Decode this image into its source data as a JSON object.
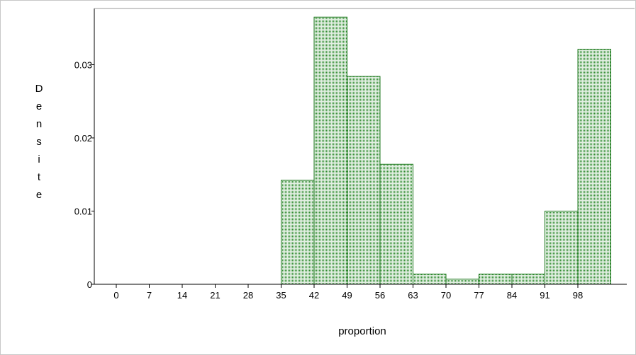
{
  "chart_data": {
    "type": "bar",
    "subtype": "histogram",
    "xlabel": "proportion",
    "ylabel": "Densite",
    "ylim": [
      0,
      0.037
    ],
    "xlim": [
      -7,
      105
    ],
    "bin_width": 7,
    "x_ticks": [
      "0",
      "7",
      "14",
      "21",
      "28",
      "35",
      "42",
      "49",
      "56",
      "63",
      "70",
      "77",
      "84",
      "91",
      "98"
    ],
    "y_ticks": [
      "0",
      "0.01",
      "0.02",
      "0.03"
    ],
    "bins": [
      {
        "start": 35,
        "end": 42,
        "value": 0.0142
      },
      {
        "start": 42,
        "end": 49,
        "value": 0.0365
      },
      {
        "start": 49,
        "end": 56,
        "value": 0.0284
      },
      {
        "start": 56,
        "end": 63,
        "value": 0.0164
      },
      {
        "start": 63,
        "end": 70,
        "value": 0.0014
      },
      {
        "start": 70,
        "end": 77,
        "value": 0.0007
      },
      {
        "start": 77,
        "end": 84,
        "value": 0.0014
      },
      {
        "start": 84,
        "end": 91,
        "value": 0.0014
      },
      {
        "start": 91,
        "end": 98,
        "value": 0.01
      },
      {
        "start": 98,
        "end": 105,
        "value": 0.0321
      }
    ],
    "bar_color": "#1f7a1f",
    "bar_fill_color": "#cfe3cf",
    "grid": false,
    "legend": "none"
  }
}
